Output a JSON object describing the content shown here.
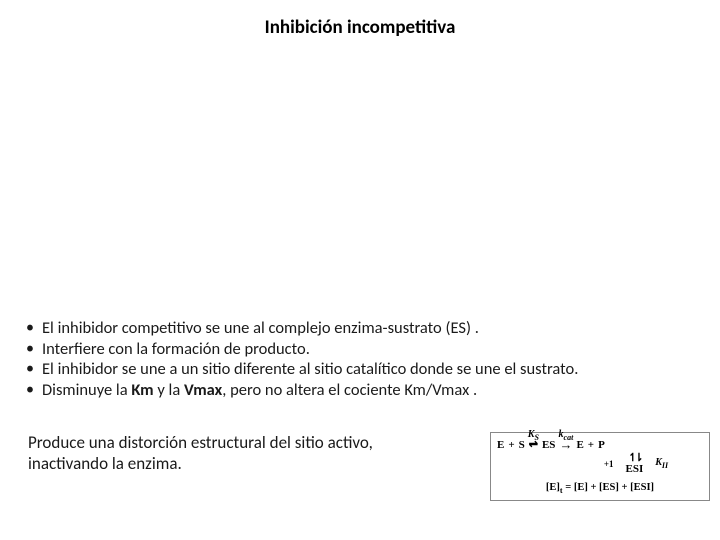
{
  "title": "Inhibición incompetitiva",
  "bullets": [
    "El inhibidor competitivo se une al complejo enzima-sustrato (ES) .",
    "Interfiere con la formación de producto.",
    "El inhibidor se une a un sitio diferente al sitio catalítico donde se une el sustrato.",
    "Disminuye la Km y la Vmax, pero no altera el cociente Km/Vmax ."
  ],
  "bullet_bold_map": {
    "3": [
      [
        "Km",
        true
      ],
      [
        "Vmax",
        true
      ]
    ]
  },
  "footer_text": "Produce una distorción estructural del sitio activo, inactivando la enzima.",
  "diagram": {
    "species": {
      "E": "E",
      "S": "S",
      "ES": "ES",
      "I": "I",
      "ESI": "ESI",
      "P": "P"
    },
    "k_top": "K",
    "ks_sub": "S",
    "kcat": "k",
    "kcat_sub": "cat",
    "ki": "K",
    "ki_sub": "II",
    "plus1": "+1",
    "eq_prefix": "[E]",
    "eq_t": "t",
    "eq_body": " = [E] + [ES] + [ESI]"
  },
  "colors": {
    "text": "#000000",
    "border": "#888888",
    "bg": "#ffffff"
  }
}
